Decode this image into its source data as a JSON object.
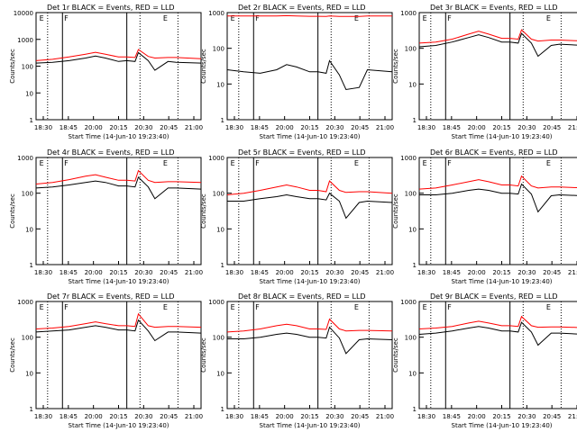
{
  "figure": {
    "xtick_labels": [
      "18:30",
      "18:45",
      "20:00",
      "20:15",
      "20:30",
      "20:45",
      "21:00"
    ],
    "xlabel": "Start Time (14-Jun-10 19:23:40)",
    "ylabel": "Counts/sec",
    "marker_letters": [
      "E",
      "F",
      "E"
    ]
  },
  "chart_data": [
    {
      "type": "line",
      "title": "Det 1r BLACK = Events, RED = LLD",
      "ylim": [
        1,
        10000
      ],
      "ytick_labels": [
        "1",
        "10",
        "100",
        "1000",
        "10000"
      ],
      "yscale": "log",
      "legend": "none",
      "series": [
        {
          "name": "Events",
          "color": "#000000",
          "x": [
            0,
            0.1,
            0.2,
            0.3,
            0.36,
            0.42,
            0.5,
            0.55,
            0.6,
            0.62,
            0.68,
            0.72,
            0.8,
            0.85,
            1
          ],
          "y": [
            130,
            140,
            160,
            200,
            240,
            200,
            150,
            160,
            150,
            320,
            160,
            70,
            150,
            140,
            130
          ]
        },
        {
          "name": "LLD",
          "color": "#ff0000",
          "x": [
            0,
            0.1,
            0.2,
            0.3,
            0.36,
            0.42,
            0.5,
            0.55,
            0.6,
            0.62,
            0.68,
            0.72,
            0.8,
            0.85,
            1
          ],
          "y": [
            160,
            180,
            220,
            280,
            330,
            280,
            220,
            220,
            210,
            420,
            230,
            200,
            210,
            210,
            190
          ]
        }
      ]
    },
    {
      "type": "line",
      "title": "Det 2r BLACK = Events, RED = LLD",
      "ylim": [
        1,
        1000
      ],
      "ytick_labels": [
        "1",
        "10",
        "100",
        "1000"
      ],
      "yscale": "log",
      "legend": "none",
      "series": [
        {
          "name": "Events",
          "color": "#000000",
          "x": [
            0,
            0.1,
            0.2,
            0.3,
            0.36,
            0.42,
            0.5,
            0.55,
            0.6,
            0.62,
            0.68,
            0.72,
            0.8,
            0.85,
            1
          ],
          "y": [
            25,
            22,
            20,
            25,
            35,
            30,
            22,
            22,
            20,
            45,
            18,
            7,
            8,
            25,
            22
          ]
        },
        {
          "name": "LLD",
          "color": "#ff0000",
          "x": [
            0,
            0.1,
            0.2,
            0.3,
            0.36,
            0.42,
            0.5,
            0.55,
            0.6,
            0.62,
            0.68,
            0.72,
            0.8,
            0.85,
            1
          ],
          "y": [
            800,
            800,
            800,
            800,
            820,
            800,
            790,
            790,
            780,
            800,
            780,
            780,
            780,
            800,
            800
          ]
        }
      ]
    },
    {
      "type": "line",
      "title": "Det 3r BLACK = Events, RED = LLD",
      "ylim": [
        1,
        1000
      ],
      "ytick_labels": [
        "1",
        "10",
        "100",
        "1000"
      ],
      "yscale": "log",
      "legend": "none",
      "series": [
        {
          "name": "Events",
          "color": "#000000",
          "x": [
            0,
            0.1,
            0.2,
            0.3,
            0.36,
            0.42,
            0.5,
            0.55,
            0.6,
            0.62,
            0.68,
            0.72,
            0.8,
            0.85,
            1
          ],
          "y": [
            110,
            120,
            150,
            200,
            240,
            200,
            150,
            150,
            140,
            260,
            140,
            60,
            120,
            130,
            120
          ]
        },
        {
          "name": "LLD",
          "color": "#ff0000",
          "x": [
            0,
            0.1,
            0.2,
            0.3,
            0.36,
            0.42,
            0.5,
            0.55,
            0.6,
            0.62,
            0.68,
            0.72,
            0.8,
            0.85,
            1
          ],
          "y": [
            140,
            150,
            180,
            250,
            300,
            250,
            190,
            190,
            180,
            330,
            180,
            160,
            170,
            170,
            160
          ]
        }
      ]
    },
    {
      "type": "line",
      "title": "Det 4r BLACK = Events, RED = LLD",
      "ylim": [
        1,
        1000
      ],
      "ytick_labels": [
        "1",
        "10",
        "100",
        "1000"
      ],
      "yscale": "log",
      "legend": "none",
      "series": [
        {
          "name": "Events",
          "color": "#000000",
          "x": [
            0,
            0.1,
            0.2,
            0.3,
            0.36,
            0.42,
            0.5,
            0.55,
            0.6,
            0.62,
            0.68,
            0.72,
            0.8,
            0.85,
            1
          ],
          "y": [
            140,
            150,
            170,
            200,
            220,
            200,
            160,
            160,
            150,
            280,
            150,
            70,
            140,
            140,
            130
          ]
        },
        {
          "name": "LLD",
          "color": "#ff0000",
          "x": [
            0,
            0.1,
            0.2,
            0.3,
            0.36,
            0.42,
            0.5,
            0.55,
            0.6,
            0.62,
            0.68,
            0.72,
            0.8,
            0.85,
            1
          ],
          "y": [
            180,
            200,
            240,
            300,
            330,
            280,
            230,
            230,
            220,
            430,
            230,
            200,
            210,
            210,
            200
          ]
        }
      ]
    },
    {
      "type": "line",
      "title": "Det 5r BLACK = Events, RED = LLD",
      "ylim": [
        1,
        1000
      ],
      "ytick_labels": [
        "1",
        "10",
        "100",
        "1000"
      ],
      "yscale": "log",
      "legend": "none",
      "series": [
        {
          "name": "Events",
          "color": "#000000",
          "x": [
            0,
            0.1,
            0.2,
            0.3,
            0.36,
            0.42,
            0.5,
            0.55,
            0.6,
            0.62,
            0.68,
            0.72,
            0.8,
            0.85,
            1
          ],
          "y": [
            60,
            60,
            70,
            80,
            90,
            80,
            70,
            70,
            65,
            100,
            60,
            20,
            55,
            60,
            55
          ]
        },
        {
          "name": "LLD",
          "color": "#ff0000",
          "x": [
            0,
            0.1,
            0.2,
            0.3,
            0.36,
            0.42,
            0.5,
            0.55,
            0.6,
            0.62,
            0.68,
            0.72,
            0.8,
            0.85,
            1
          ],
          "y": [
            90,
            100,
            120,
            150,
            170,
            150,
            120,
            120,
            110,
            220,
            120,
            105,
            110,
            110,
            100
          ]
        }
      ]
    },
    {
      "type": "line",
      "title": "Det 6r BLACK = Events, RED = LLD",
      "ylim": [
        1,
        1000
      ],
      "ytick_labels": [
        "1",
        "10",
        "100",
        "1000"
      ],
      "yscale": "log",
      "legend": "none",
      "series": [
        {
          "name": "Events",
          "color": "#000000",
          "x": [
            0,
            0.1,
            0.2,
            0.3,
            0.36,
            0.42,
            0.5,
            0.55,
            0.6,
            0.62,
            0.68,
            0.72,
            0.8,
            0.85,
            1
          ],
          "y": [
            90,
            90,
            100,
            120,
            130,
            120,
            100,
            100,
            95,
            180,
            95,
            30,
            85,
            90,
            85
          ]
        },
        {
          "name": "LLD",
          "color": "#ff0000",
          "x": [
            0,
            0.1,
            0.2,
            0.3,
            0.36,
            0.42,
            0.5,
            0.55,
            0.6,
            0.62,
            0.68,
            0.72,
            0.8,
            0.85,
            1
          ],
          "y": [
            130,
            140,
            170,
            210,
            240,
            210,
            170,
            170,
            160,
            300,
            160,
            140,
            150,
            150,
            140
          ]
        }
      ]
    },
    {
      "type": "line",
      "title": "Det 7r BLACK = Events, RED = LLD",
      "ylim": [
        1,
        1000
      ],
      "ytick_labels": [
        "1",
        "10",
        "100",
        "1000"
      ],
      "yscale": "log",
      "legend": "none",
      "series": [
        {
          "name": "Events",
          "color": "#000000",
          "x": [
            0,
            0.1,
            0.2,
            0.3,
            0.36,
            0.42,
            0.5,
            0.55,
            0.6,
            0.62,
            0.68,
            0.72,
            0.8,
            0.85,
            1
          ],
          "y": [
            140,
            150,
            160,
            190,
            210,
            190,
            160,
            160,
            150,
            300,
            150,
            80,
            140,
            140,
            130
          ]
        },
        {
          "name": "LLD",
          "color": "#ff0000",
          "x": [
            0,
            0.1,
            0.2,
            0.3,
            0.36,
            0.42,
            0.5,
            0.55,
            0.6,
            0.62,
            0.68,
            0.72,
            0.8,
            0.85,
            1
          ],
          "y": [
            170,
            180,
            200,
            240,
            270,
            240,
            210,
            210,
            200,
            450,
            210,
            190,
            200,
            200,
            190
          ]
        }
      ]
    },
    {
      "type": "line",
      "title": "Det 8r BLACK = Events, RED = LLD",
      "ylim": [
        1,
        1000
      ],
      "ytick_labels": [
        "1",
        "10",
        "100",
        "1000"
      ],
      "yscale": "log",
      "legend": "none",
      "series": [
        {
          "name": "Events",
          "color": "#000000",
          "x": [
            0,
            0.1,
            0.2,
            0.3,
            0.36,
            0.42,
            0.5,
            0.55,
            0.6,
            0.62,
            0.68,
            0.72,
            0.8,
            0.85,
            1
          ],
          "y": [
            90,
            90,
            100,
            120,
            130,
            120,
            100,
            100,
            95,
            190,
            95,
            35,
            85,
            90,
            85
          ]
        },
        {
          "name": "LLD",
          "color": "#ff0000",
          "x": [
            0,
            0.1,
            0.2,
            0.3,
            0.36,
            0.42,
            0.5,
            0.55,
            0.6,
            0.62,
            0.68,
            0.72,
            0.8,
            0.85,
            1
          ],
          "y": [
            140,
            150,
            170,
            210,
            230,
            210,
            170,
            170,
            165,
            320,
            170,
            150,
            155,
            155,
            150
          ]
        }
      ]
    },
    {
      "type": "line",
      "title": "Det 9r BLACK = Events, RED = LLD",
      "ylim": [
        1,
        1000
      ],
      "ytick_labels": [
        "1",
        "10",
        "100",
        "1000"
      ],
      "yscale": "log",
      "legend": "none",
      "series": [
        {
          "name": "Events",
          "color": "#000000",
          "x": [
            0,
            0.1,
            0.2,
            0.3,
            0.36,
            0.42,
            0.5,
            0.55,
            0.6,
            0.62,
            0.68,
            0.72,
            0.8,
            0.85,
            1
          ],
          "y": [
            120,
            130,
            150,
            180,
            200,
            180,
            150,
            150,
            140,
            260,
            140,
            60,
            130,
            130,
            120
          ]
        },
        {
          "name": "LLD",
          "color": "#ff0000",
          "x": [
            0,
            0.1,
            0.2,
            0.3,
            0.36,
            0.42,
            0.5,
            0.55,
            0.6,
            0.62,
            0.68,
            0.72,
            0.8,
            0.85,
            1
          ],
          "y": [
            170,
            180,
            200,
            250,
            280,
            250,
            210,
            210,
            200,
            380,
            210,
            190,
            195,
            195,
            185
          ]
        }
      ]
    }
  ]
}
